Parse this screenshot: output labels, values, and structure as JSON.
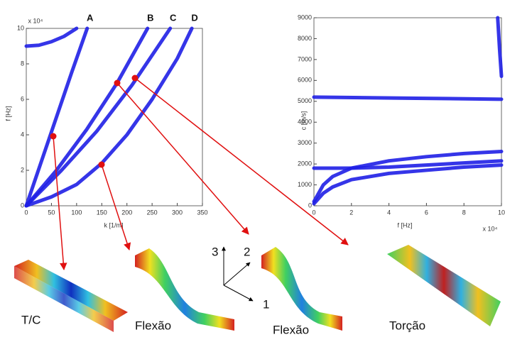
{
  "chart_data": [
    {
      "type": "line",
      "xlabel": "k [1/m]",
      "ylabel": "f [Hz]",
      "multiplier": "x 10⁴",
      "xlim": [
        0,
        350
      ],
      "xticks": [
        0,
        50,
        100,
        150,
        200,
        250,
        300,
        350
      ],
      "ylim": [
        0,
        10
      ],
      "yticks": [
        0,
        2,
        4,
        6,
        8,
        10
      ],
      "color": "#1f1fe6",
      "series": [
        {
          "name": "A",
          "x": [
            0,
            30,
            60,
            90,
            121
          ],
          "values": [
            0,
            2.5,
            5,
            7.5,
            10
          ]
        },
        {
          "name": "B",
          "x": [
            0,
            60,
            120,
            180,
            241
          ],
          "values": [
            0,
            2,
            4.3,
            6.9,
            10
          ]
        },
        {
          "name": "C",
          "x": [
            0,
            70,
            140,
            210,
            286
          ],
          "values": [
            0,
            2,
            4.2,
            6.8,
            10
          ]
        },
        {
          "name": "D",
          "x": [
            0,
            50,
            100,
            150,
            200,
            250,
            300,
            329
          ],
          "values": [
            0,
            0.5,
            1.2,
            2.4,
            4,
            6,
            8.3,
            10
          ]
        },
        {
          "x": [
            0,
            25,
            50,
            75,
            100
          ],
          "values": [
            9,
            9.05,
            9.25,
            9.55,
            10
          ]
        }
      ]
    },
    {
      "type": "line",
      "xlabel": "f [Hz]",
      "ylabel": "c [m/s]",
      "multiplier": "x 10⁴",
      "xlim": [
        0,
        10
      ],
      "xticks": [
        0,
        2,
        4,
        6,
        8,
        10
      ],
      "ylim": [
        0,
        9000
      ],
      "yticks": [
        0,
        1000,
        2000,
        3000,
        4000,
        5000,
        6000,
        7000,
        8000,
        9000
      ],
      "color": "#1f1fe6",
      "series": [
        {
          "x": [
            0,
            5,
            10
          ],
          "values": [
            5200,
            5150,
            5100
          ]
        },
        {
          "x": [
            0,
            2,
            4,
            6,
            8,
            10
          ],
          "values": [
            1800,
            1800,
            1850,
            1950,
            2050,
            2150
          ]
        },
        {
          "x": [
            0,
            0.5,
            1,
            2,
            4,
            6,
            8,
            10
          ],
          "values": [
            200,
            1000,
            1400,
            1800,
            2150,
            2350,
            2500,
            2600
          ]
        },
        {
          "x": [
            0,
            0.5,
            1,
            2,
            4,
            6,
            8,
            10
          ],
          "values": [
            100,
            600,
            900,
            1250,
            1550,
            1700,
            1850,
            1950
          ]
        },
        {
          "x": [
            9.8,
            9.9,
            10
          ],
          "values": [
            9000,
            7500,
            6200
          ]
        }
      ]
    }
  ],
  "mode_labels": [
    "T/C",
    "Flexão",
    "Flexão",
    "Torção"
  ],
  "triad_labels": [
    "1",
    "2",
    "3"
  ]
}
